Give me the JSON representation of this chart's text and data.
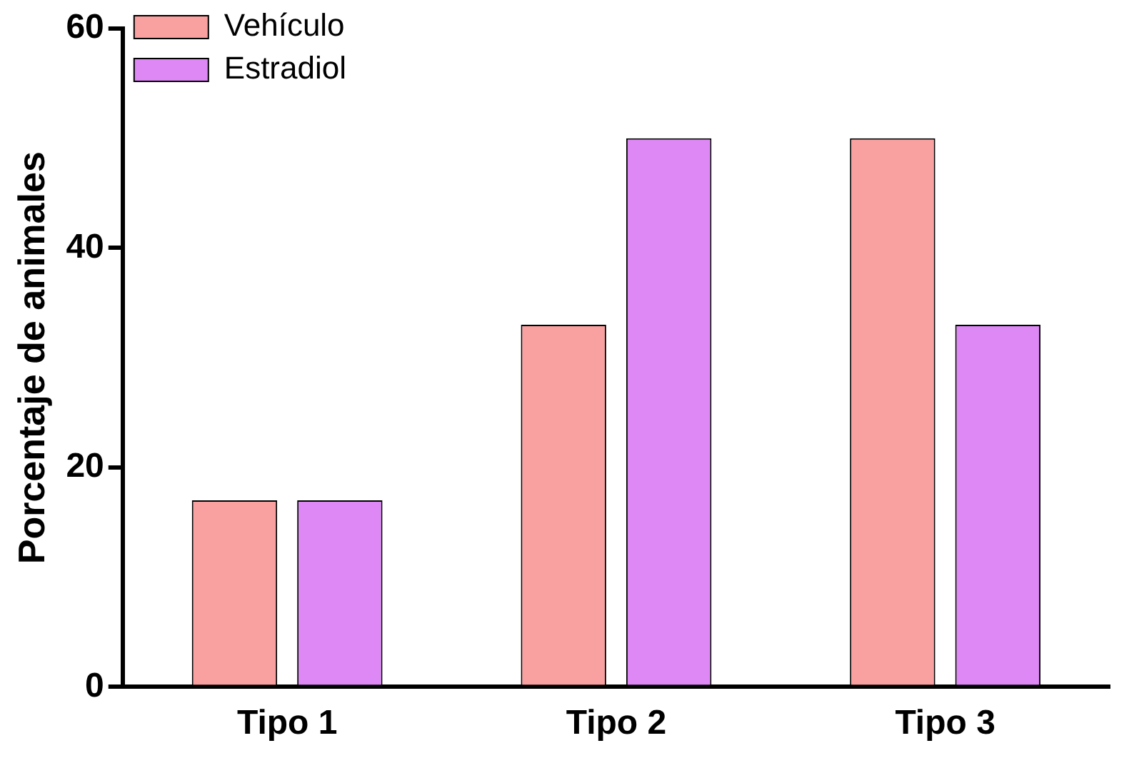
{
  "chart_data": {
    "type": "bar",
    "ylabel": "Porcentaje de animales",
    "categories": [
      "Tipo 1",
      "Tipo 2",
      "Tipo 3"
    ],
    "series": [
      {
        "name": "Vehículo",
        "color": "#f9a0a0",
        "values": [
          17,
          33,
          50
        ]
      },
      {
        "name": "Estradiol",
        "color": "#dd88f5",
        "values": [
          17,
          50,
          33
        ]
      }
    ],
    "ylim": [
      0,
      60
    ],
    "yticks": [
      0,
      20,
      40,
      60
    ],
    "grid": false,
    "legend": "top left"
  }
}
